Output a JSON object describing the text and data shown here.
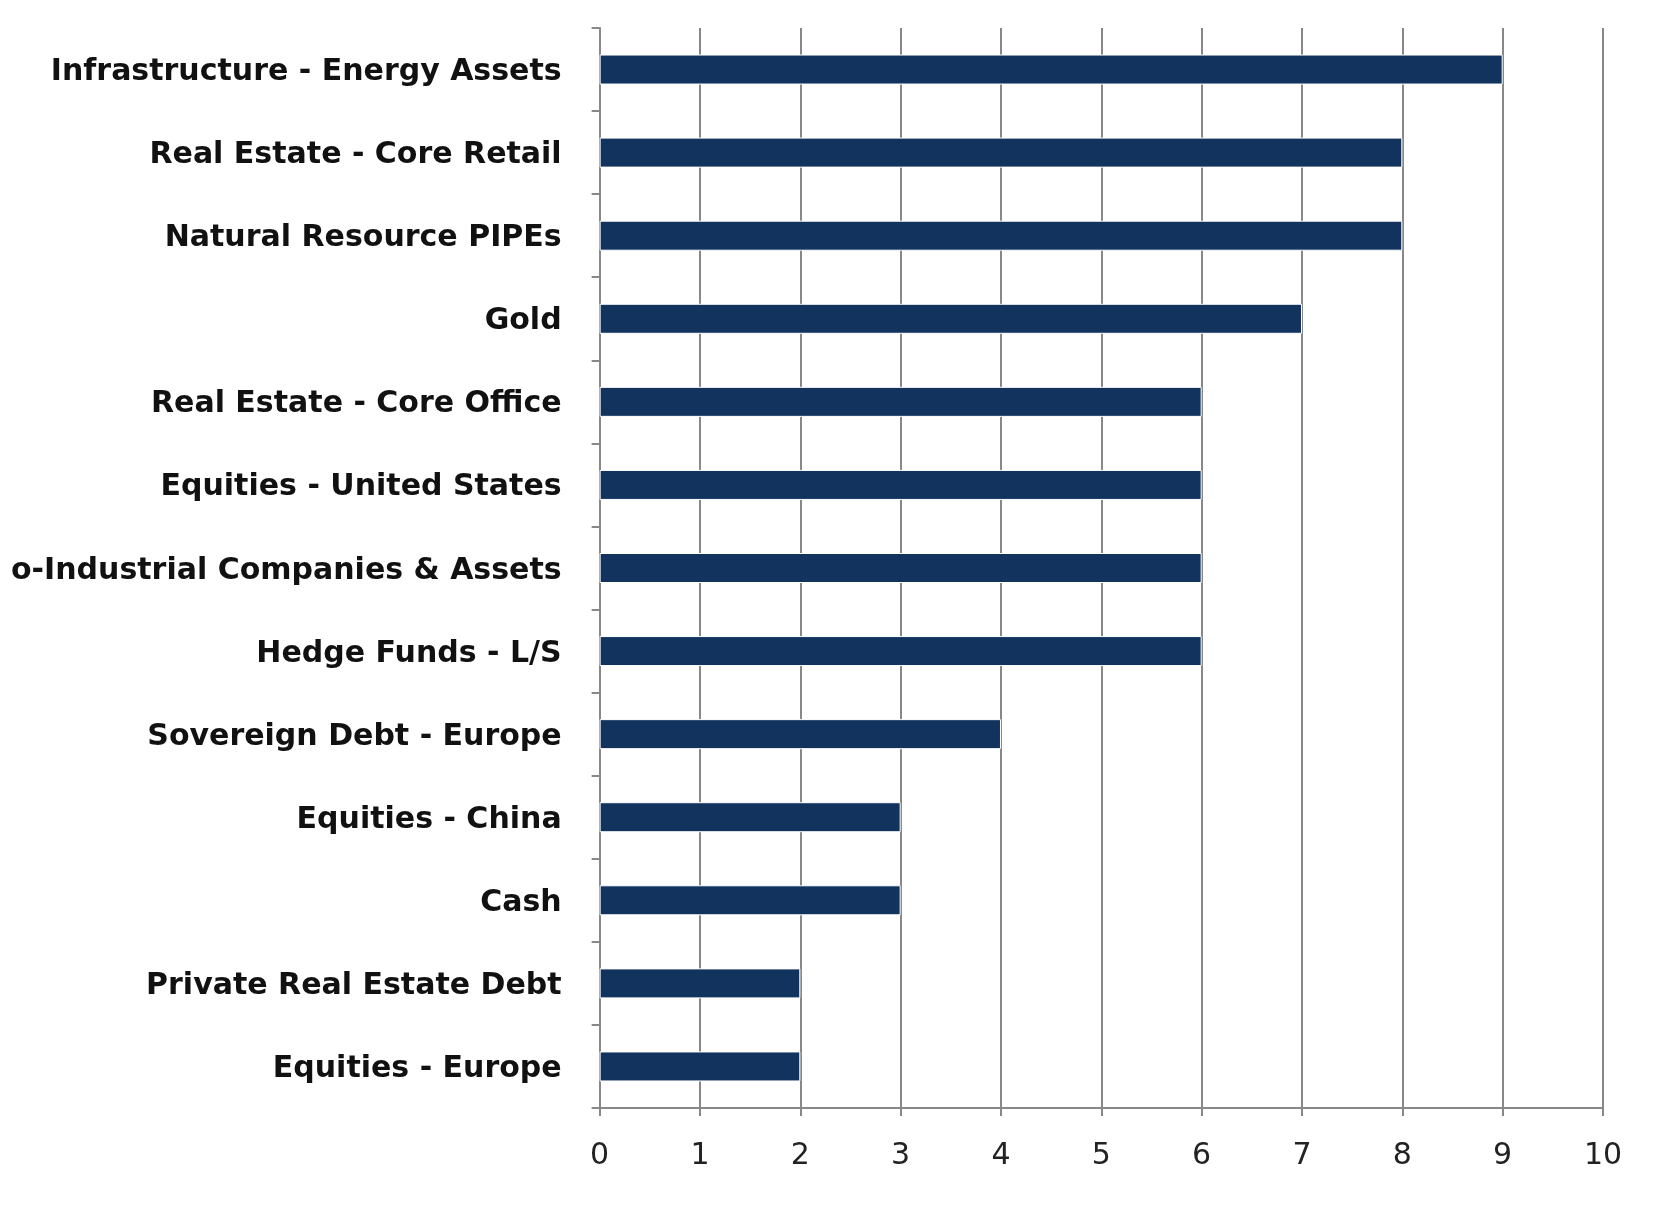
{
  "chart_data": {
    "type": "bar",
    "orientation": "horizontal",
    "categories": [
      "Infrastructure - Energy Assets",
      "Real Estate - Core Retail",
      "Natural Resource PIPEs",
      "Gold",
      "Real Estate - Core Office",
      "Equities - United States",
      "o-Industrial Companies & Assets",
      "Hedge Funds - L/S",
      "Sovereign Debt - Europe",
      "Equities - China",
      "Cash",
      "Private Real Estate Debt",
      "Equities - Europe"
    ],
    "values": [
      9,
      8,
      8,
      7,
      6,
      6,
      6,
      6,
      4,
      3,
      3,
      2,
      2
    ],
    "color": "#12335e",
    "xlim": [
      0,
      10
    ],
    "xticks": [
      0,
      1,
      2,
      3,
      4,
      5,
      6,
      7,
      8,
      9,
      10
    ],
    "grid": "x"
  }
}
